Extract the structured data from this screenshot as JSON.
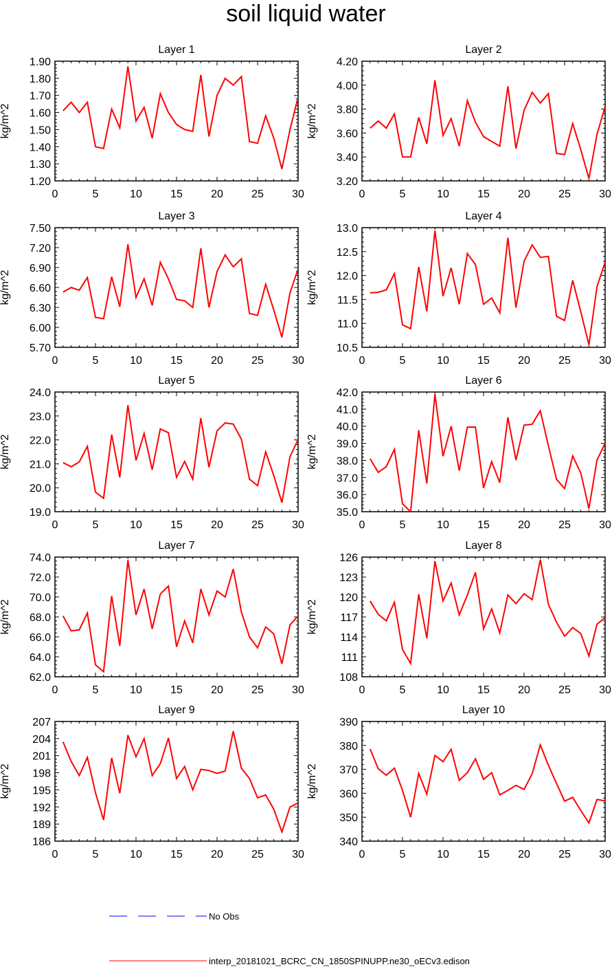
{
  "title": "soil liquid water",
  "colors": {
    "model_line": "#ff0000",
    "obs_line": "#0000ff",
    "axis": "#000000"
  },
  "legend": {
    "items": [
      {
        "label": "No Obs",
        "style": "dashed",
        "color": "#0000ff"
      },
      {
        "label": "interp_20181021_BCRC_CN_1850SPINUPP.ne30_oECv3.edison",
        "style": "solid",
        "color": "#ff0000"
      }
    ]
  },
  "chart_data": [
    {
      "type": "line",
      "title": "Layer 1",
      "ylabel": "kg/m^2",
      "xlim": [
        0,
        30
      ],
      "ylim": [
        1.2,
        1.9
      ],
      "xticks": [
        0,
        5,
        10,
        15,
        20,
        25,
        30
      ],
      "yticks": [
        1.2,
        1.3,
        1.4,
        1.5,
        1.6,
        1.7,
        1.8,
        1.9
      ],
      "ydecimals": 2,
      "x": [
        1,
        2,
        3,
        4,
        5,
        6,
        7,
        8,
        9,
        10,
        11,
        12,
        13,
        14,
        15,
        16,
        17,
        18,
        19,
        20,
        21,
        22,
        23,
        24,
        25,
        26,
        27,
        28,
        29,
        30
      ],
      "series": [
        {
          "values": [
            1.61,
            1.66,
            1.6,
            1.66,
            1.4,
            1.39,
            1.62,
            1.51,
            1.87,
            1.55,
            1.63,
            1.45,
            1.71,
            1.6,
            1.53,
            1.5,
            1.49,
            1.82,
            1.46,
            1.7,
            1.8,
            1.76,
            1.81,
            1.43,
            1.42,
            1.58,
            1.45,
            1.27,
            1.5,
            1.69
          ]
        }
      ]
    },
    {
      "type": "line",
      "title": "Layer 2",
      "ylabel": "kg/m^2",
      "xlim": [
        0,
        30
      ],
      "ylim": [
        3.2,
        4.2
      ],
      "xticks": [
        0,
        5,
        10,
        15,
        20,
        25,
        30
      ],
      "yticks": [
        3.2,
        3.4,
        3.6,
        3.8,
        4.0,
        4.2
      ],
      "ydecimals": 2,
      "x": [
        1,
        2,
        3,
        4,
        5,
        6,
        7,
        8,
        9,
        10,
        11,
        12,
        13,
        14,
        15,
        16,
        17,
        18,
        19,
        20,
        21,
        22,
        23,
        24,
        25,
        26,
        27,
        28,
        29,
        30
      ],
      "series": [
        {
          "values": [
            3.64,
            3.7,
            3.64,
            3.76,
            3.4,
            3.4,
            3.73,
            3.51,
            4.04,
            3.58,
            3.72,
            3.49,
            3.87,
            3.69,
            3.57,
            3.53,
            3.49,
            3.99,
            3.47,
            3.79,
            3.94,
            3.85,
            3.93,
            3.43,
            3.42,
            3.68,
            3.46,
            3.22,
            3.59,
            3.82
          ]
        }
      ]
    },
    {
      "type": "line",
      "title": "Layer 3",
      "ylabel": "kg/m^2",
      "xlim": [
        0,
        30
      ],
      "ylim": [
        5.7,
        7.5
      ],
      "xticks": [
        0,
        5,
        10,
        15,
        20,
        25,
        30
      ],
      "yticks": [
        5.7,
        6.0,
        6.3,
        6.6,
        6.9,
        7.2,
        7.5
      ],
      "ydecimals": 2,
      "x": [
        1,
        2,
        3,
        4,
        5,
        6,
        7,
        8,
        9,
        10,
        11,
        12,
        13,
        14,
        15,
        16,
        17,
        18,
        19,
        20,
        21,
        22,
        23,
        24,
        25,
        26,
        27,
        28,
        29,
        30
      ],
      "series": [
        {
          "values": [
            6.53,
            6.6,
            6.56,
            6.75,
            6.15,
            6.13,
            6.76,
            6.31,
            7.25,
            6.45,
            6.73,
            6.33,
            6.98,
            6.73,
            6.42,
            6.4,
            6.3,
            7.19,
            6.3,
            6.84,
            7.09,
            6.91,
            7.03,
            6.21,
            6.18,
            6.65,
            6.26,
            5.85,
            6.52,
            6.88
          ]
        }
      ]
    },
    {
      "type": "line",
      "title": "Layer 4",
      "ylabel": "kg/m^2",
      "xlim": [
        0,
        30
      ],
      "ylim": [
        10.5,
        13.0
      ],
      "xticks": [
        0,
        5,
        10,
        15,
        20,
        25,
        30
      ],
      "yticks": [
        10.5,
        11.0,
        11.5,
        12.0,
        12.5,
        13.0
      ],
      "ydecimals": 1,
      "x": [
        1,
        2,
        3,
        4,
        5,
        6,
        7,
        8,
        9,
        10,
        11,
        12,
        13,
        14,
        15,
        16,
        17,
        18,
        19,
        20,
        21,
        22,
        23,
        24,
        25,
        26,
        27,
        28,
        29,
        30
      ],
      "series": [
        {
          "values": [
            11.64,
            11.65,
            11.7,
            12.04,
            10.97,
            10.89,
            12.18,
            11.25,
            12.94,
            11.57,
            12.16,
            11.4,
            12.46,
            12.23,
            11.4,
            11.53,
            11.22,
            12.79,
            11.33,
            12.3,
            12.64,
            12.38,
            12.4,
            11.15,
            11.06,
            11.9,
            11.24,
            10.55,
            11.77,
            12.28
          ]
        }
      ]
    },
    {
      "type": "line",
      "title": "Layer 5",
      "ylabel": "kg/m^2",
      "xlim": [
        0,
        30
      ],
      "ylim": [
        19.0,
        24.0
      ],
      "xticks": [
        0,
        5,
        10,
        15,
        20,
        25,
        30
      ],
      "yticks": [
        19.0,
        20.0,
        21.0,
        22.0,
        23.0,
        24.0
      ],
      "ydecimals": 1,
      "x": [
        1,
        2,
        3,
        4,
        5,
        6,
        7,
        8,
        9,
        10,
        11,
        12,
        13,
        14,
        15,
        16,
        17,
        18,
        19,
        20,
        21,
        22,
        23,
        24,
        25,
        26,
        27,
        28,
        29,
        30
      ],
      "series": [
        {
          "values": [
            21.05,
            20.88,
            21.08,
            21.73,
            19.82,
            19.56,
            22.22,
            20.43,
            23.45,
            21.14,
            22.27,
            20.75,
            22.46,
            22.3,
            20.43,
            21.1,
            20.36,
            22.91,
            20.86,
            22.38,
            22.71,
            22.66,
            22.03,
            20.36,
            20.09,
            21.5,
            20.51,
            19.38,
            21.3,
            22.02
          ]
        }
      ]
    },
    {
      "type": "line",
      "title": "Layer 6",
      "ylabel": "kg/m^2",
      "xlim": [
        0,
        30
      ],
      "ylim": [
        35.0,
        42.0
      ],
      "xticks": [
        0,
        5,
        10,
        15,
        20,
        25,
        30
      ],
      "yticks": [
        35.0,
        36.0,
        37.0,
        38.0,
        39.0,
        40.0,
        41.0,
        42.0
      ],
      "ydecimals": 1,
      "x": [
        1,
        2,
        3,
        4,
        5,
        6,
        7,
        8,
        9,
        10,
        11,
        12,
        13,
        14,
        15,
        16,
        17,
        18,
        19,
        20,
        21,
        22,
        23,
        24,
        25,
        26,
        27,
        28,
        29,
        30
      ],
      "series": [
        {
          "values": [
            38.1,
            37.3,
            37.63,
            38.65,
            35.46,
            35.0,
            39.76,
            36.65,
            41.87,
            38.25,
            40.0,
            37.4,
            39.95,
            39.95,
            36.39,
            37.93,
            36.7,
            40.52,
            38.02,
            40.06,
            40.12,
            40.9,
            38.85,
            36.9,
            36.35,
            38.26,
            37.26,
            35.18,
            38.03,
            39.0
          ]
        }
      ]
    },
    {
      "type": "line",
      "title": "Layer 7",
      "ylabel": "kg/m^2",
      "xlim": [
        0,
        30
      ],
      "ylim": [
        62.0,
        74.0
      ],
      "xticks": [
        0,
        5,
        10,
        15,
        20,
        25,
        30
      ],
      "yticks": [
        62.0,
        64.0,
        66.0,
        68.0,
        70.0,
        72.0,
        74.0
      ],
      "ydecimals": 1,
      "x": [
        1,
        2,
        3,
        4,
        5,
        6,
        7,
        8,
        9,
        10,
        11,
        12,
        13,
        14,
        15,
        16,
        17,
        18,
        19,
        20,
        21,
        22,
        23,
        24,
        25,
        26,
        27,
        28,
        29,
        30
      ],
      "series": [
        {
          "values": [
            68.1,
            66.6,
            66.7,
            68.4,
            63.2,
            62.5,
            70.1,
            65.1,
            73.7,
            68.2,
            70.8,
            66.8,
            70.3,
            71.1,
            65.0,
            67.6,
            65.4,
            70.8,
            68.2,
            70.6,
            70.0,
            72.8,
            68.5,
            66.0,
            64.9,
            67.0,
            66.3,
            63.3,
            67.2,
            68.1
          ]
        }
      ]
    },
    {
      "type": "line",
      "title": "Layer 8",
      "ylabel": "kg/m^2",
      "xlim": [
        0,
        30
      ],
      "ylim": [
        108,
        126
      ],
      "xticks": [
        0,
        5,
        10,
        15,
        20,
        25,
        30
      ],
      "yticks": [
        108,
        111,
        114,
        117,
        120,
        123,
        126
      ],
      "ydecimals": 0,
      "x": [
        1,
        2,
        3,
        4,
        5,
        6,
        7,
        8,
        9,
        10,
        11,
        12,
        13,
        14,
        15,
        16,
        17,
        18,
        19,
        20,
        21,
        22,
        23,
        24,
        25,
        26,
        27,
        28,
        29,
        30
      ],
      "series": [
        {
          "values": [
            119.4,
            117.4,
            116.4,
            119.2,
            112.1,
            110.0,
            120.4,
            113.8,
            125.4,
            119.4,
            122.1,
            117.3,
            120.3,
            123.7,
            115.2,
            118.2,
            114.6,
            120.3,
            119.0,
            120.5,
            119.6,
            125.6,
            118.9,
            116.2,
            114.1,
            115.4,
            114.5,
            111.1,
            115.9,
            116.9
          ]
        }
      ]
    },
    {
      "type": "line",
      "title": "Layer 9",
      "ylabel": "kg/m^2",
      "xlim": [
        0,
        30
      ],
      "ylim": [
        186,
        207
      ],
      "xticks": [
        0,
        5,
        10,
        15,
        20,
        25,
        30
      ],
      "yticks": [
        186,
        189,
        192,
        195,
        198,
        201,
        204,
        207
      ],
      "ydecimals": 0,
      "x": [
        1,
        2,
        3,
        4,
        5,
        6,
        7,
        8,
        9,
        10,
        11,
        12,
        13,
        14,
        15,
        16,
        17,
        18,
        19,
        20,
        21,
        22,
        23,
        24,
        25,
        26,
        27,
        28,
        29,
        30
      ],
      "series": [
        {
          "values": [
            203.4,
            200.0,
            197.5,
            200.7,
            194.5,
            189.7,
            200.6,
            194.4,
            204.6,
            200.8,
            204.0,
            197.5,
            199.6,
            204.1,
            197.0,
            199.1,
            195.0,
            198.6,
            198.4,
            197.9,
            198.3,
            205.3,
            198.8,
            197.0,
            193.6,
            194.1,
            191.6,
            187.6,
            192.0,
            192.7
          ]
        }
      ]
    },
    {
      "type": "line",
      "title": "Layer 10",
      "ylabel": "kg/m^2",
      "xlim": [
        0,
        30
      ],
      "ylim": [
        340,
        390
      ],
      "xticks": [
        0,
        5,
        10,
        15,
        20,
        25,
        30
      ],
      "yticks": [
        340,
        350,
        360,
        370,
        380,
        390
      ],
      "ydecimals": 0,
      "x": [
        1,
        2,
        3,
        4,
        5,
        6,
        7,
        8,
        9,
        10,
        11,
        12,
        13,
        14,
        15,
        16,
        17,
        18,
        19,
        20,
        21,
        22,
        23,
        24,
        25,
        26,
        27,
        28,
        29,
        30
      ],
      "series": [
        {
          "values": [
            378.5,
            370.3,
            367.5,
            370.5,
            361.2,
            350.0,
            368.3,
            359.6,
            375.8,
            373.2,
            378.4,
            365.4,
            368.6,
            374.4,
            365.8,
            368.6,
            359.3,
            361.2,
            363.3,
            361.6,
            368.2,
            380.2,
            371.7,
            364.1,
            356.7,
            358.3,
            352.8,
            347.6,
            357.4,
            356.8
          ]
        }
      ]
    }
  ]
}
